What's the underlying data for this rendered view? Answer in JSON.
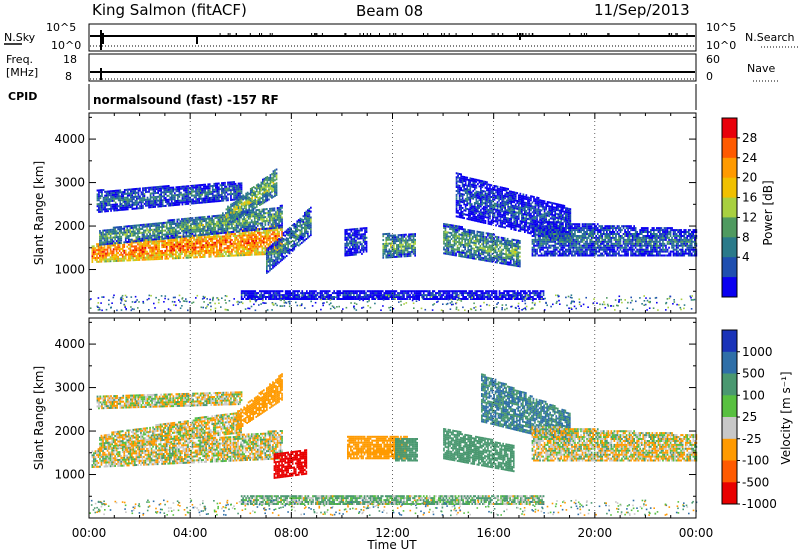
{
  "header": {
    "station": "King Salmon (fitACF)",
    "beam": "Beam 08",
    "date": "11/Sep/2013"
  },
  "status_panels": {
    "nsky_label": "N.Sky",
    "nsky_ticks": [
      "10^5",
      "10^0"
    ],
    "nsearch_label": "N.Search",
    "nsearch_ticks": [
      "10^5",
      "10^0"
    ],
    "freq_label_1": "Freq.",
    "freq_label_2": "[MHz]",
    "freq_ticks": [
      "18",
      "8"
    ],
    "nave_label": "Nave",
    "nave_ticks": [
      "60",
      "0"
    ],
    "cpid_label": "CPID",
    "cpid_text": "normalsound (fast) -157 RF"
  },
  "chart_data": [
    {
      "type": "heatmap",
      "name": "power",
      "ylabel": "Slant Range [km]",
      "yticks": [
        1000,
        2000,
        3000,
        4000
      ],
      "ylim": [
        0,
        4600
      ],
      "xlim_hours": [
        0,
        24
      ],
      "colorbar": {
        "label": "Power [dB]",
        "ticks": [
          "28",
          "24",
          "20",
          "16",
          "12",
          "8",
          "4"
        ],
        "colors": [
          "#e8000b",
          "#ff5a00",
          "#ff9a00",
          "#f0c000",
          "#a8d040",
          "#4f9a60",
          "#2a7a8a",
          "#1f4fb0",
          "#0a00f0"
        ]
      },
      "bands": [
        {
          "t0": 0.1,
          "t1": 7.6,
          "r0a": 1150,
          "r1a": 1550,
          "r0b": 1350,
          "r1b": 2000,
          "level": 26
        },
        {
          "t0": 0.4,
          "t1": 7.6,
          "r0a": 1550,
          "r1a": 1900,
          "r0b": 1950,
          "r1b": 2450,
          "level": 14
        },
        {
          "t0": 0.3,
          "t1": 6.0,
          "r0a": 2300,
          "r1a": 2800,
          "r0b": 2600,
          "r1b": 3000,
          "level": 10
        },
        {
          "t0": 5.4,
          "t1": 7.4,
          "r0a": 2000,
          "r1a": 2400,
          "r0b": 2700,
          "r1b": 3300,
          "level": 16
        },
        {
          "t0": 7.0,
          "t1": 8.8,
          "r0a": 900,
          "r1a": 1450,
          "r0b": 1800,
          "r1b": 2450,
          "level": 12
        },
        {
          "t0": 10.1,
          "t1": 11.0,
          "r0a": 1300,
          "r1a": 1900,
          "r0b": 1350,
          "r1b": 1950,
          "level": 8
        },
        {
          "t0": 11.6,
          "t1": 12.9,
          "r0a": 1250,
          "r1a": 1800,
          "r0b": 1300,
          "r1b": 1800,
          "level": 14
        },
        {
          "t0": 14.0,
          "t1": 17.0,
          "r0a": 1350,
          "r1a": 2050,
          "r0b": 1050,
          "r1b": 1650,
          "level": 14
        },
        {
          "t0": 14.5,
          "t1": 19.0,
          "r0a": 2200,
          "r1a": 3200,
          "r0b": 1600,
          "r1b": 2400,
          "level": 8
        },
        {
          "t0": 17.5,
          "t1": 24.0,
          "r0a": 1300,
          "r1a": 2100,
          "r0b": 1300,
          "r1b": 1900,
          "level": 10
        },
        {
          "t0": 6.0,
          "t1": 18.0,
          "r0a": 300,
          "r1a": 500,
          "r0b": 300,
          "r1b": 500,
          "level": 6
        }
      ]
    },
    {
      "type": "heatmap",
      "name": "velocity",
      "ylabel": "Slant Range [km]",
      "yticks": [
        1000,
        2000,
        3000,
        4000
      ],
      "ylim": [
        0,
        4600
      ],
      "xlim_hours": [
        0,
        24
      ],
      "xticks": [
        "00:00",
        "04:00",
        "08:00",
        "12:00",
        "16:00",
        "20:00",
        "00:00"
      ],
      "xlabel": "Time UT",
      "colorbar": {
        "label": "Velocity [m s⁻¹]",
        "ticks": [
          "1000",
          "500",
          "100",
          "25",
          "-25",
          "-100",
          "-500",
          "-1000"
        ],
        "colors": [
          "#1a33b8",
          "#2f6fa8",
          "#4a9870",
          "#58c040",
          "#c8c8c8",
          "#ff9a00",
          "#ff5a00",
          "#e80000"
        ]
      },
      "bands": [
        {
          "t0": 0.1,
          "t1": 7.6,
          "r0a": 1150,
          "r1a": 1550,
          "r0b": 1350,
          "r1b": 2000,
          "level": 0
        },
        {
          "t0": 0.4,
          "t1": 6.0,
          "r0a": 1550,
          "r1a": 1900,
          "r0b": 1950,
          "r1b": 2450,
          "level": 0
        },
        {
          "t0": 0.3,
          "t1": 6.0,
          "r0a": 2500,
          "r1a": 2800,
          "r0b": 2600,
          "r1b": 2900,
          "level": 0
        },
        {
          "t0": 5.8,
          "t1": 7.6,
          "r0a": 2000,
          "r1a": 2400,
          "r0b": 2700,
          "r1b": 3300,
          "level": -200
        },
        {
          "t0": 7.3,
          "t1": 8.6,
          "r0a": 900,
          "r1a": 1450,
          "r0b": 1000,
          "r1b": 1550,
          "level": -800
        },
        {
          "t0": 10.2,
          "t1": 12.6,
          "r0a": 1350,
          "r1a": 1850,
          "r0b": 1350,
          "r1b": 1850,
          "level": -150
        },
        {
          "t0": 12.1,
          "t1": 13.0,
          "r0a": 1300,
          "r1a": 1800,
          "r0b": 1300,
          "r1b": 1800,
          "level": 200
        },
        {
          "t0": 14.0,
          "t1": 16.8,
          "r0a": 1350,
          "r1a": 2050,
          "r0b": 1050,
          "r1b": 1650,
          "level": 200
        },
        {
          "t0": 15.5,
          "t1": 19.0,
          "r0a": 2200,
          "r1a": 3300,
          "r0b": 1700,
          "r1b": 2400,
          "level": 300
        },
        {
          "t0": 17.5,
          "t1": 24.0,
          "r0a": 1300,
          "r1a": 2100,
          "r0b": 1300,
          "r1b": 1900,
          "level": 0
        },
        {
          "t0": 6.0,
          "t1": 18.0,
          "r0a": 300,
          "r1a": 500,
          "r0b": 300,
          "r1b": 500,
          "level": 60
        }
      ]
    }
  ]
}
